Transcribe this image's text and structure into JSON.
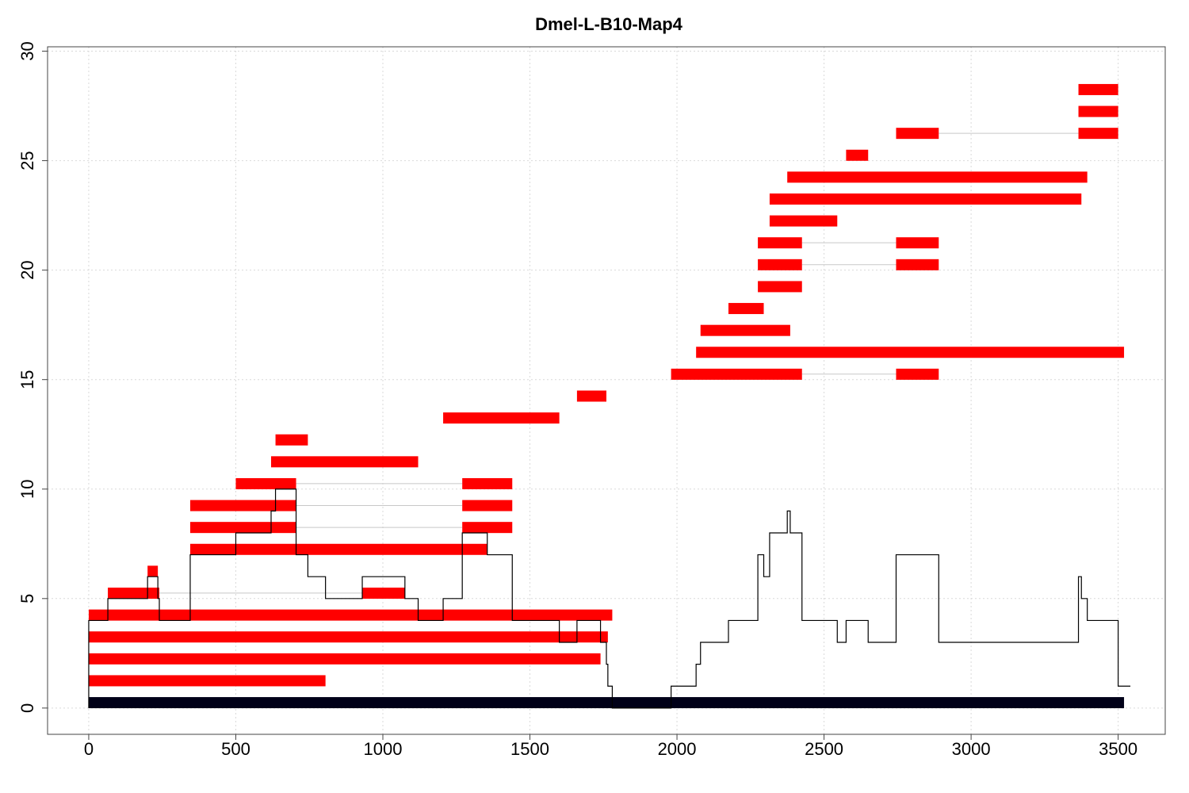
{
  "chart_data": {
    "type": "bar",
    "title": "Dmel-L-B10-Map4",
    "xlabel": "",
    "ylabel": "",
    "xlim": [
      -140,
      3660
    ],
    "ylim": [
      -1.2,
      30.2
    ],
    "x_ticks": [
      0,
      500,
      1000,
      1500,
      2000,
      2500,
      3000,
      3500
    ],
    "y_ticks": [
      0,
      5,
      10,
      15,
      20,
      25,
      30
    ],
    "grid": true,
    "colors": {
      "read": "#ff0000",
      "reference": "#000018",
      "coverage": "#000000",
      "connector": "#c8c8c8"
    },
    "reference": {
      "start": 0,
      "end": 3520,
      "row": 0
    },
    "reads": [
      {
        "row": 1,
        "segments": [
          [
            0,
            805
          ]
        ]
      },
      {
        "row": 2,
        "segments": [
          [
            0,
            1740
          ]
        ]
      },
      {
        "row": 3,
        "segments": [
          [
            0,
            1765
          ]
        ]
      },
      {
        "row": 4,
        "segments": [
          [
            0,
            1780
          ]
        ]
      },
      {
        "row": 5,
        "segments": [
          [
            65,
            240
          ],
          [
            930,
            1075
          ]
        ]
      },
      {
        "row": 6,
        "segments": [
          [
            200,
            235
          ]
        ]
      },
      {
        "row": 7,
        "segments": [
          [
            345,
            1355
          ]
        ]
      },
      {
        "row": 8,
        "segments": [
          [
            345,
            705
          ],
          [
            1270,
            1440
          ]
        ]
      },
      {
        "row": 9,
        "segments": [
          [
            345,
            705
          ],
          [
            1270,
            1440
          ]
        ]
      },
      {
        "row": 10,
        "segments": [
          [
            500,
            705
          ],
          [
            1270,
            1440
          ]
        ]
      },
      {
        "row": 11,
        "segments": [
          [
            620,
            1120
          ]
        ]
      },
      {
        "row": 12,
        "segments": [
          [
            635,
            745
          ]
        ]
      },
      {
        "row": 13,
        "segments": [
          [
            1205,
            1600
          ]
        ]
      },
      {
        "row": 14,
        "segments": [
          [
            1660,
            1760
          ]
        ]
      },
      {
        "row": 15,
        "segments": [
          [
            1980,
            2425
          ],
          [
            2745,
            2890
          ]
        ]
      },
      {
        "row": 16,
        "segments": [
          [
            2065,
            3520
          ]
        ]
      },
      {
        "row": 17,
        "segments": [
          [
            2080,
            2385
          ]
        ]
      },
      {
        "row": 18,
        "segments": [
          [
            2175,
            2295
          ]
        ]
      },
      {
        "row": 19,
        "segments": [
          [
            2275,
            2425
          ]
        ]
      },
      {
        "row": 20,
        "segments": [
          [
            2275,
            2425
          ],
          [
            2745,
            2890
          ]
        ]
      },
      {
        "row": 21,
        "segments": [
          [
            2275,
            2425
          ],
          [
            2745,
            2890
          ]
        ]
      },
      {
        "row": 22,
        "segments": [
          [
            2315,
            2545
          ]
        ]
      },
      {
        "row": 23,
        "segments": [
          [
            2315,
            3375
          ]
        ]
      },
      {
        "row": 24,
        "segments": [
          [
            2375,
            3395
          ]
        ]
      },
      {
        "row": 25,
        "segments": [
          [
            2575,
            2650
          ]
        ]
      },
      {
        "row": 26,
        "segments": [
          [
            2745,
            2890
          ],
          [
            3365,
            3500
          ]
        ]
      },
      {
        "row": 27,
        "segments": [
          [
            3365,
            3500
          ]
        ]
      },
      {
        "row": 28,
        "segments": [
          [
            3365,
            3500
          ]
        ]
      }
    ],
    "coverage": {
      "x": [
        0,
        65,
        200,
        235,
        240,
        345,
        500,
        620,
        635,
        705,
        745,
        805,
        930,
        1075,
        1120,
        1205,
        1270,
        1355,
        1440,
        1600,
        1660,
        1740,
        1760,
        1765,
        1780,
        1980,
        2065,
        2080,
        2175,
        2275,
        2295,
        2315,
        2375,
        2385,
        2425,
        2545,
        2575,
        2650,
        2745,
        2890,
        3365,
        3375,
        3395,
        3500,
        3520
      ],
      "y": [
        4,
        5,
        6,
        5,
        4,
        7,
        8,
        9,
        10,
        7,
        6,
        5,
        6,
        5,
        4,
        5,
        8,
        7,
        4,
        3,
        4,
        3,
        2,
        1,
        0,
        1,
        2,
        3,
        4,
        7,
        6,
        8,
        9,
        8,
        4,
        3,
        4,
        3,
        7,
        3,
        6,
        5,
        4,
        1,
        1
      ]
    }
  }
}
